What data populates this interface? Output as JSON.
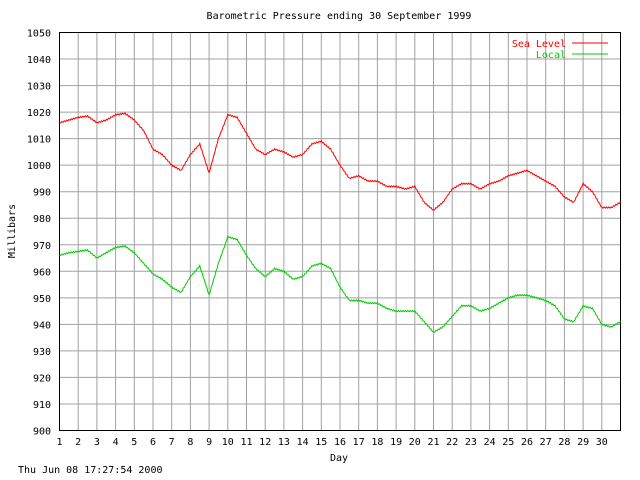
{
  "chart_data": {
    "type": "line",
    "title": "Barometric Pressure ending 30 September 1999",
    "xlabel": "Day",
    "ylabel": "Millibars",
    "ylim": [
      900,
      1050
    ],
    "xlim": [
      1,
      31
    ],
    "yticks": [
      "900",
      "910",
      "920",
      "930",
      "940",
      "950",
      "960",
      "970",
      "980",
      "990",
      "1000",
      "1010",
      "1020",
      "1030",
      "1040",
      "1050"
    ],
    "xticks": [
      "1",
      "2",
      "3",
      "4",
      "5",
      "6",
      "7",
      "8",
      "9",
      "10",
      "11",
      "12",
      "13",
      "14",
      "15",
      "16",
      "17",
      "18",
      "19",
      "20",
      "21",
      "22",
      "23",
      "24",
      "25",
      "26",
      "27",
      "28",
      "29",
      "30"
    ],
    "grid": true,
    "legend": "top-right",
    "series": [
      {
        "name": "Sea Level",
        "color": "#ff0000",
        "x": [
          1,
          1.5,
          2,
          2.5,
          3,
          3.5,
          4,
          4.5,
          5,
          5.5,
          6,
          6.5,
          7,
          7.5,
          8,
          8.5,
          9,
          9.5,
          10,
          10.5,
          11,
          11.5,
          12,
          12.5,
          13,
          13.5,
          14,
          14.5,
          15,
          15.5,
          16,
          16.5,
          17,
          17.5,
          18,
          18.5,
          19,
          19.5,
          20,
          20.5,
          21,
          21.5,
          22,
          22.5,
          23,
          23.5,
          24,
          24.5,
          25,
          25.5,
          26,
          26.5,
          27,
          27.5,
          28,
          28.5,
          29,
          29.5,
          30,
          30.5,
          31
        ],
        "values": [
          1016,
          1017,
          1018,
          1018.5,
          1016,
          1017,
          1019,
          1019.5,
          1017,
          1013,
          1006,
          1004,
          1000,
          998,
          1004,
          1008,
          997,
          1010,
          1019,
          1018,
          1012,
          1006,
          1004,
          1006,
          1005,
          1003,
          1004,
          1008,
          1009,
          1006,
          1000,
          995,
          996,
          994,
          994,
          992,
          992,
          991,
          992,
          986,
          983,
          986,
          991,
          993,
          993,
          991,
          993,
          994,
          996,
          997,
          998,
          996,
          994,
          992,
          988,
          986,
          993,
          990,
          984,
          984,
          986
        ],
        "y_end_note": "985"
      },
      {
        "name": "Local",
        "color": "#00cc00",
        "x": [
          1,
          1.5,
          2,
          2.5,
          3,
          3.5,
          4,
          4.5,
          5,
          5.5,
          6,
          6.5,
          7,
          7.5,
          8,
          8.5,
          9,
          9.5,
          10,
          10.5,
          11,
          11.5,
          12,
          12.5,
          13,
          13.5,
          14,
          14.5,
          15,
          15.5,
          16,
          16.5,
          17,
          17.5,
          18,
          18.5,
          19,
          19.5,
          20,
          20.5,
          21,
          21.5,
          22,
          22.5,
          23,
          23.5,
          24,
          24.5,
          25,
          25.5,
          26,
          26.5,
          27,
          27.5,
          28,
          28.5,
          29,
          29.5,
          30,
          30.5,
          31
        ],
        "values": [
          966,
          967,
          967.5,
          968,
          965,
          967,
          969,
          969.5,
          967,
          963,
          959,
          957,
          954,
          952,
          958,
          962,
          951,
          963,
          973,
          972,
          966,
          961,
          958,
          961,
          960,
          957,
          958,
          962,
          963,
          961,
          954,
          949,
          949,
          948,
          948,
          946,
          945,
          945,
          945,
          941,
          937,
          939,
          943,
          947,
          947,
          945,
          946,
          948,
          950,
          951,
          951,
          950,
          949,
          947,
          942,
          941,
          947,
          946,
          940,
          939,
          941
        ]
      }
    ]
  },
  "footer": {
    "timestamp": "Thu Jun 08 17:27:54 2000"
  }
}
